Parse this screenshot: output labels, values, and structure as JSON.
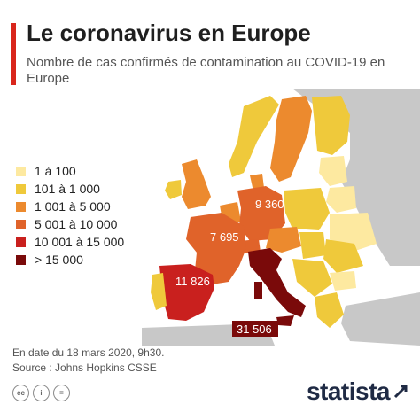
{
  "header": {
    "title": "Le coronavirus en Europe",
    "subtitle": "Nombre de cas confirmés de contamination au COVID-19 en Europe",
    "accent_color": "#d9261c"
  },
  "legend": [
    {
      "label": "1 à 100",
      "color": "#fde9a0"
    },
    {
      "label": "101 à 1 000",
      "color": "#efc93b"
    },
    {
      "label": "1 001 à 5 000",
      "color": "#ec8a2e"
    },
    {
      "label": "5 001 à 10 000",
      "color": "#e0632a"
    },
    {
      "label": "10 001 à 15 000",
      "color": "#c9201e"
    },
    {
      "label": "> 15 000",
      "color": "#7a0a0a"
    }
  ],
  "map_labels": {
    "germany": "9 360",
    "france": "7 695",
    "spain": "11 826",
    "italy": "31 506"
  },
  "footer": {
    "date": "En date du 18 mars 2020, 9h30.",
    "source": "Source : Johns Hopkins CSSE",
    "brand": "statista",
    "license_icons": [
      "cc",
      "i",
      "="
    ]
  }
}
